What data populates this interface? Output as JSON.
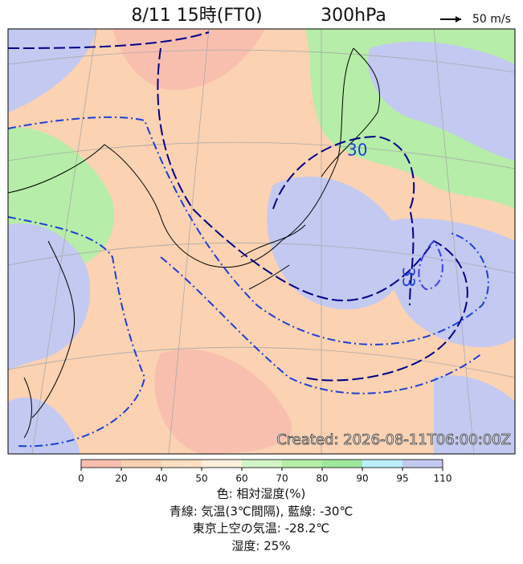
{
  "header": {
    "title_time": "8/11 15時(FT0)",
    "title_level": "300hPa",
    "wind_scale": "50 m/s"
  },
  "map": {
    "created": "Created: 2026-08-11T06:00:00Z",
    "contour_labels": [
      "30",
      "33"
    ]
  },
  "colorbar": {
    "ticks": [
      0,
      20,
      40,
      50,
      60,
      70,
      80,
      90,
      95,
      110
    ],
    "colors": [
      "#f8bfae",
      "#fbd2b2",
      "#fde0c2",
      "#fdeedd",
      "#d2f4c6",
      "#b6eda8",
      "#9fe89c",
      "#bdeefc",
      "#c3c9f1"
    ]
  },
  "caption": [
    "色: 相対湿度(%)",
    "青線: 気温(3℃間隔), 藍線: -30℃",
    "東京上空の気温: -28.2℃",
    "湿度: 25%"
  ]
}
